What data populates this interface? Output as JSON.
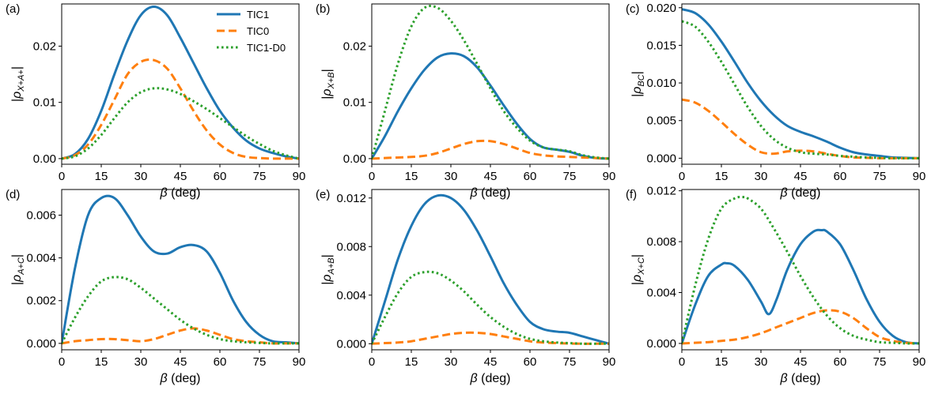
{
  "chart_data": {
    "type": "line",
    "legend": {
      "location": "top-right of panel (a)",
      "entries": [
        {
          "name": "TIC1",
          "color": "#1f77b4",
          "style": "solid"
        },
        {
          "name": "TIC0",
          "color": "#ff7f0e",
          "style": "dashed"
        },
        {
          "name": "TIC1-D0",
          "color": "#2ca02c",
          "style": "dotted"
        }
      ]
    },
    "x_ticks": [
      "0",
      "15",
      "30",
      "45",
      "60",
      "75",
      "90"
    ],
    "xlim": [
      0,
      90
    ],
    "panels": [
      {
        "label": "(a)",
        "xlabel_main": "β",
        "xlabel_unit": " (deg)",
        "ylabel_base": "|ρ",
        "ylabel_sub": "X+A+",
        "ylabel_end": "|",
        "ylim": [
          -0.001,
          0.0275
        ],
        "y_ticks": [
          0,
          0.01,
          0.02
        ],
        "y_tick_labels": [
          "0.00",
          "0.01",
          "0.02"
        ],
        "series": [
          {
            "name": "TIC1",
            "x": [
              0,
              5,
              10,
              15,
              20,
              25,
              30,
              35,
              40,
              45,
              50,
              55,
              60,
              65,
              70,
              75,
              80,
              85,
              90
            ],
            "y": [
              0,
              0.0008,
              0.0035,
              0.0085,
              0.015,
              0.021,
              0.0255,
              0.027,
              0.0255,
              0.0215,
              0.017,
              0.0125,
              0.0085,
              0.0055,
              0.0032,
              0.0018,
              0.001,
              0.0004,
              0
            ]
          },
          {
            "name": "TIC0",
            "x": [
              0,
              5,
              10,
              15,
              20,
              25,
              30,
              35,
              40,
              45,
              50,
              55,
              60,
              65,
              70,
              75,
              80,
              85,
              90
            ],
            "y": [
              0,
              0.0006,
              0.0025,
              0.006,
              0.0105,
              0.015,
              0.0172,
              0.0175,
              0.016,
              0.0125,
              0.0085,
              0.005,
              0.0025,
              0.001,
              0.0003,
              0.0001,
              0,
              0,
              0
            ]
          },
          {
            "name": "TIC1-D0",
            "x": [
              0,
              5,
              10,
              15,
              20,
              25,
              30,
              35,
              40,
              45,
              50,
              55,
              60,
              65,
              70,
              75,
              80,
              85,
              90
            ],
            "y": [
              0,
              0.0004,
              0.0018,
              0.0042,
              0.0072,
              0.01,
              0.0118,
              0.0125,
              0.0123,
              0.0115,
              0.0102,
              0.0088,
              0.0072,
              0.0056,
              0.004,
              0.0026,
              0.0014,
              0.0006,
              0
            ]
          }
        ]
      },
      {
        "label": "(b)",
        "xlabel_main": "β",
        "xlabel_unit": " (deg)",
        "ylabel_base": "|ρ",
        "ylabel_sub": "X+B",
        "ylabel_end": "|",
        "ylim": [
          -0.001,
          0.0275
        ],
        "y_ticks": [
          0,
          0.01,
          0.02
        ],
        "y_tick_labels": [
          "0.00",
          "0.01",
          "0.02"
        ],
        "series": [
          {
            "name": "TIC1",
            "x": [
              0,
              5,
              10,
              15,
              20,
              25,
              30,
              35,
              40,
              45,
              50,
              55,
              60,
              65,
              70,
              75,
              80,
              85,
              90
            ],
            "y": [
              0,
              0.004,
              0.0085,
              0.0125,
              0.0158,
              0.018,
              0.0187,
              0.0182,
              0.0162,
              0.013,
              0.0095,
              0.0062,
              0.0035,
              0.002,
              0.0016,
              0.0012,
              0.0005,
              0.0001,
              0
            ]
          },
          {
            "name": "TIC0",
            "x": [
              0,
              5,
              10,
              15,
              20,
              25,
              30,
              35,
              40,
              45,
              50,
              55,
              60,
              65,
              70,
              75,
              80,
              85,
              90
            ],
            "y": [
              0,
              0.0001,
              0.0002,
              0.0003,
              0.0005,
              0.001,
              0.0018,
              0.0026,
              0.0031,
              0.0031,
              0.0026,
              0.0018,
              0.001,
              0.0006,
              0.0004,
              0.0003,
              0.0002,
              0.0001,
              0
            ]
          },
          {
            "name": "TIC1-D0",
            "x": [
              0,
              5,
              10,
              15,
              20,
              25,
              30,
              35,
              40,
              45,
              50,
              55,
              60,
              65,
              70,
              75,
              80,
              85,
              90
            ],
            "y": [
              0,
              0.0085,
              0.017,
              0.0235,
              0.0268,
              0.0268,
              0.0245,
              0.021,
              0.0168,
              0.0125,
              0.0085,
              0.0055,
              0.0032,
              0.002,
              0.0016,
              0.0013,
              0.0006,
              0.0002,
              0
            ]
          }
        ]
      },
      {
        "label": "(c)",
        "xlabel_main": "β",
        "xlabel_unit": " (deg)",
        "ylabel_base": "|ρ",
        "ylabel_sub": "BC",
        "ylabel_end": "|",
        "ylim": [
          -0.0008,
          0.0205
        ],
        "y_ticks": [
          0,
          0.005,
          0.01,
          0.015,
          0.02
        ],
        "y_tick_labels": [
          "0.000",
          "0.005",
          "0.010",
          "0.015",
          "0.020"
        ],
        "series": [
          {
            "name": "TIC1",
            "x": [
              0,
              5,
              10,
              15,
              20,
              25,
              30,
              35,
              40,
              45,
              50,
              55,
              60,
              65,
              70,
              75,
              80,
              85,
              90
            ],
            "y": [
              0.0198,
              0.0193,
              0.0178,
              0.0155,
              0.0128,
              0.01,
              0.0076,
              0.0057,
              0.0043,
              0.0035,
              0.0029,
              0.0022,
              0.0014,
              0.0008,
              0.0005,
              0.0003,
              0.0001,
              5e-05,
              0
            ]
          },
          {
            "name": "TIC0",
            "x": [
              0,
              5,
              10,
              15,
              20,
              25,
              30,
              35,
              40,
              45,
              50,
              55,
              60,
              65,
              70,
              75,
              80,
              85,
              90
            ],
            "y": [
              0.0078,
              0.0074,
              0.0063,
              0.0048,
              0.0032,
              0.0018,
              0.0008,
              0.0006,
              0.0009,
              0.001,
              0.0009,
              0.0006,
              0.0003,
              0.0001,
              5e-05,
              0,
              0,
              0,
              0
            ]
          },
          {
            "name": "TIC1-D0",
            "x": [
              0,
              5,
              10,
              15,
              20,
              25,
              30,
              35,
              40,
              45,
              50,
              55,
              60,
              65,
              70,
              75,
              80,
              85,
              90
            ],
            "y": [
              0.0182,
              0.0175,
              0.0155,
              0.0128,
              0.0098,
              0.0068,
              0.0043,
              0.0025,
              0.0014,
              0.0008,
              0.0006,
              0.0005,
              0.0003,
              0.0002,
              0.0001,
              5e-05,
              0,
              0,
              0
            ]
          }
        ]
      },
      {
        "label": "(d)",
        "xlabel_main": "β",
        "xlabel_unit": " (deg)",
        "ylabel_base": "|ρ",
        "ylabel_sub": "A+C",
        "ylabel_end": "|",
        "ylim": [
          -0.0003,
          0.0072
        ],
        "y_ticks": [
          0,
          0.002,
          0.004,
          0.006
        ],
        "y_tick_labels": [
          "0.000",
          "0.002",
          "0.004",
          "0.006"
        ],
        "series": [
          {
            "name": "TIC1",
            "x": [
              0,
              5,
              10,
              15,
              20,
              25,
              30,
              35,
              40,
              45,
              50,
              55,
              60,
              65,
              70,
              75,
              80,
              85,
              90
            ],
            "y": [
              0,
              0.0035,
              0.006,
              0.0068,
              0.0068,
              0.006,
              0.005,
              0.0043,
              0.0042,
              0.0045,
              0.0046,
              0.0043,
              0.0033,
              0.002,
              0.001,
              0.0004,
              0.0001,
              5e-05,
              0
            ]
          },
          {
            "name": "TIC0",
            "x": [
              0,
              5,
              10,
              15,
              20,
              25,
              30,
              35,
              40,
              45,
              50,
              55,
              60,
              65,
              70,
              75,
              80,
              85,
              90
            ],
            "y": [
              0,
              0.0001,
              0.00015,
              0.0002,
              0.0002,
              0.00015,
              0.0001,
              0.0002,
              0.0004,
              0.0006,
              0.0007,
              0.0006,
              0.0004,
              0.0002,
              0.0001,
              5e-05,
              0,
              0,
              0
            ]
          },
          {
            "name": "TIC1-D0",
            "x": [
              0,
              5,
              10,
              15,
              20,
              25,
              30,
              35,
              40,
              45,
              50,
              55,
              60,
              65,
              70,
              75,
              80,
              85,
              90
            ],
            "y": [
              0,
              0.0012,
              0.0022,
              0.0029,
              0.0031,
              0.003,
              0.0026,
              0.0021,
              0.0016,
              0.0011,
              0.0007,
              0.0004,
              0.0002,
              0.0001,
              5e-05,
              2e-05,
              0,
              0,
              0
            ]
          }
        ]
      },
      {
        "label": "(e)",
        "xlabel_main": "β",
        "xlabel_unit": " (deg)",
        "ylabel_base": "|ρ",
        "ylabel_sub": "A+B",
        "ylabel_end": "|",
        "ylim": [
          -0.0005,
          0.0127
        ],
        "y_ticks": [
          0,
          0.004,
          0.008,
          0.012
        ],
        "y_tick_labels": [
          "0.000",
          "0.004",
          "0.008",
          "0.012"
        ],
        "series": [
          {
            "name": "TIC1",
            "x": [
              0,
              5,
              10,
              15,
              20,
              25,
              30,
              35,
              40,
              45,
              50,
              55,
              60,
              65,
              70,
              75,
              80,
              85,
              90
            ],
            "y": [
              0,
              0.0035,
              0.007,
              0.0097,
              0.0115,
              0.0122,
              0.012,
              0.011,
              0.0093,
              0.0072,
              0.005,
              0.0032,
              0.0018,
              0.0012,
              0.001,
              0.0009,
              0.0006,
              0.0003,
              0
            ]
          },
          {
            "name": "TIC0",
            "x": [
              0,
              5,
              10,
              15,
              20,
              25,
              30,
              35,
              40,
              45,
              50,
              55,
              60,
              65,
              70,
              75,
              80,
              85,
              90
            ],
            "y": [
              0,
              5e-05,
              0.0001,
              0.0002,
              0.0004,
              0.0006,
              0.0008,
              0.0009,
              0.0009,
              0.0008,
              0.0006,
              0.0004,
              0.0002,
              0.0001,
              5e-05,
              2e-05,
              0,
              0,
              0
            ]
          },
          {
            "name": "TIC1-D0",
            "x": [
              0,
              5,
              10,
              15,
              20,
              25,
              30,
              35,
              40,
              45,
              50,
              55,
              60,
              65,
              70,
              75,
              80,
              85,
              90
            ],
            "y": [
              0,
              0.0022,
              0.0042,
              0.0055,
              0.0059,
              0.0058,
              0.0052,
              0.0043,
              0.0032,
              0.0022,
              0.0014,
              0.0008,
              0.0004,
              0.0002,
              0.0001,
              5e-05,
              0,
              0,
              0
            ]
          }
        ]
      },
      {
        "label": "(f)",
        "xlabel_main": "β",
        "xlabel_unit": " (deg)",
        "ylabel_base": "|ρ",
        "ylabel_sub": "X+C",
        "ylabel_end": "|",
        "ylim": [
          -0.0005,
          0.0121
        ],
        "y_ticks": [
          0,
          0.004,
          0.008,
          0.012
        ],
        "y_tick_labels": [
          "0.000",
          "0.004",
          "0.008",
          "0.012"
        ],
        "series": [
          {
            "name": "TIC1",
            "x": [
              0,
              5,
              10,
              15,
              17,
              20,
              25,
              30,
              33,
              36,
              40,
              45,
              50,
              53,
              55,
              60,
              65,
              70,
              75,
              80,
              85,
              90
            ],
            "y": [
              0,
              0.003,
              0.0053,
              0.0062,
              0.0063,
              0.0061,
              0.005,
              0.0033,
              0.0023,
              0.0035,
              0.0058,
              0.0078,
              0.0088,
              0.0089,
              0.0088,
              0.0078,
              0.0058,
              0.0035,
              0.0017,
              0.0006,
              0.0001,
              0
            ]
          },
          {
            "name": "TIC0",
            "x": [
              0,
              5,
              10,
              15,
              20,
              25,
              30,
              35,
              40,
              45,
              50,
              55,
              60,
              65,
              70,
              75,
              80,
              85,
              90
            ],
            "y": [
              0,
              5e-05,
              0.0001,
              0.0002,
              0.0003,
              0.0005,
              0.0008,
              0.0012,
              0.0016,
              0.002,
              0.0024,
              0.0026,
              0.0025,
              0.002,
              0.0012,
              0.0005,
              0.0002,
              5e-05,
              0
            ]
          },
          {
            "name": "TIC1-D0",
            "x": [
              0,
              5,
              10,
              15,
              20,
              23,
              25,
              30,
              35,
              40,
              45,
              50,
              55,
              60,
              65,
              70,
              75,
              80,
              85,
              90
            ],
            "y": [
              0,
              0.0045,
              0.0082,
              0.0106,
              0.0114,
              0.0115,
              0.0114,
              0.0106,
              0.009,
              0.0072,
              0.0053,
              0.0036,
              0.0022,
              0.0012,
              0.0006,
              0.0003,
              0.0001,
              5e-05,
              0,
              0
            ]
          }
        ]
      }
    ]
  }
}
